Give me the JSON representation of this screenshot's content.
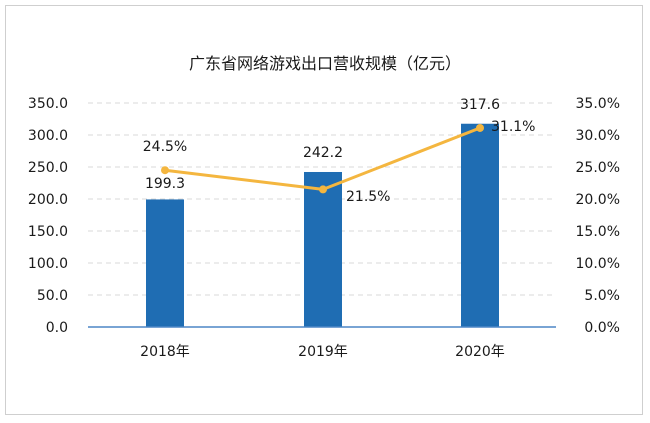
{
  "chart_data": {
    "type": "bar",
    "title": "广东省网络游戏出口营收规模（亿元）",
    "categories": [
      "2018年",
      "2019年",
      "2020年"
    ],
    "series": [
      {
        "type": "bar",
        "values": [
          199.3,
          242.2,
          317.6
        ],
        "value_labels": [
          "199.3",
          "242.2",
          "317.6"
        ],
        "color": "#1f6db3"
      },
      {
        "type": "line",
        "axis": "right",
        "values": [
          24.5,
          21.5,
          31.1
        ],
        "value_labels": [
          "24.5%",
          "21.5%",
          "31.1%"
        ],
        "color": "#f4b63f"
      }
    ],
    "y_left": {
      "min": 0,
      "max": 350,
      "ticks": [
        "0.0",
        "50.0",
        "100.0",
        "150.0",
        "200.0",
        "250.0",
        "300.0",
        "350.0"
      ]
    },
    "y_right": {
      "min": 0,
      "max": 35,
      "ticks": [
        "0.0%",
        "5.0%",
        "10.0%",
        "15.0%",
        "20.0%",
        "25.0%",
        "30.0%",
        "35.0%"
      ]
    },
    "grid": true,
    "legend": "none"
  }
}
